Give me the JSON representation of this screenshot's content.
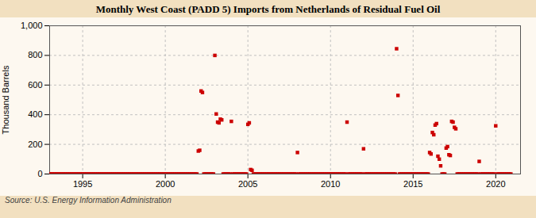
{
  "chart_data": {
    "type": "scatter",
    "title": "Monthly West Coast (PADD 5) Imports from Netherlands of Residual Fuel Oil",
    "ylabel": "Thousand Barrels",
    "source": "Source: U.S. Energy Information Administration",
    "color": "#cc0000",
    "marker": "square",
    "grid": true,
    "xlim": [
      1993.0,
      2021.5
    ],
    "ylim": [
      0,
      1000
    ],
    "xticks": [
      1995,
      2000,
      2005,
      2010,
      2015,
      2020
    ],
    "yticks": [
      0,
      200,
      400,
      600,
      800,
      {
        "value": 1000,
        "label": "1,000"
      }
    ],
    "x": [
      1993.0,
      1993.083,
      1993.167,
      1993.25,
      1993.333,
      1993.417,
      1993.5,
      1993.583,
      1993.667,
      1993.75,
      1993.833,
      1993.917,
      1994.0,
      1994.083,
      1994.167,
      1994.25,
      1994.333,
      1994.417,
      1994.5,
      1994.583,
      1994.667,
      1994.75,
      1994.833,
      1994.917,
      1995.0,
      1995.083,
      1995.167,
      1995.25,
      1995.333,
      1995.417,
      1995.5,
      1995.583,
      1995.667,
      1995.75,
      1995.833,
      1995.917,
      1996.0,
      1996.083,
      1996.167,
      1996.25,
      1996.333,
      1996.417,
      1996.5,
      1996.583,
      1996.667,
      1996.75,
      1996.833,
      1996.917,
      1997.0,
      1997.083,
      1997.167,
      1997.25,
      1997.333,
      1997.417,
      1997.5,
      1997.583,
      1997.667,
      1997.75,
      1997.833,
      1997.917,
      1998.0,
      1998.083,
      1998.167,
      1998.25,
      1998.333,
      1998.417,
      1998.5,
      1998.583,
      1998.667,
      1998.75,
      1998.833,
      1998.917,
      1999.0,
      1999.083,
      1999.167,
      1999.25,
      1999.333,
      1999.417,
      1999.5,
      1999.583,
      1999.667,
      1999.75,
      1999.833,
      1999.917,
      2000.0,
      2000.083,
      2000.167,
      2000.25,
      2000.333,
      2000.417,
      2000.5,
      2000.583,
      2000.667,
      2000.75,
      2000.833,
      2000.917,
      2001.0,
      2001.083,
      2001.167,
      2001.25,
      2001.333,
      2001.417,
      2001.5,
      2001.583,
      2001.667,
      2001.75,
      2001.833,
      2001.917,
      2002.0,
      2002.083,
      2002.167,
      2002.25,
      2002.333,
      2002.417,
      2002.5,
      2002.583,
      2002.667,
      2002.75,
      2002.833,
      2002.917,
      2003.0,
      2003.083,
      2003.167,
      2003.25,
      2003.333,
      2003.417,
      2003.5,
      2003.583,
      2003.667,
      2003.75,
      2003.833,
      2003.917,
      2004.0,
      2004.083,
      2004.167,
      2004.25,
      2004.333,
      2004.417,
      2004.5,
      2004.583,
      2004.667,
      2004.75,
      2004.833,
      2004.917,
      2005.0,
      2005.083,
      2005.167,
      2005.25,
      2005.333,
      2005.417,
      2005.5,
      2005.583,
      2005.667,
      2005.75,
      2005.833,
      2005.917,
      2006.0,
      2006.083,
      2006.167,
      2006.25,
      2006.333,
      2006.417,
      2006.5,
      2006.583,
      2006.667,
      2006.75,
      2006.833,
      2006.917,
      2007.0,
      2007.083,
      2007.167,
      2007.25,
      2007.333,
      2007.417,
      2007.5,
      2007.583,
      2007.667,
      2007.75,
      2007.833,
      2007.917,
      2008.0,
      2008.083,
      2008.167,
      2008.25,
      2008.333,
      2008.417,
      2008.5,
      2008.583,
      2008.667,
      2008.75,
      2008.833,
      2008.917,
      2009.0,
      2009.083,
      2009.167,
      2009.25,
      2009.333,
      2009.417,
      2009.5,
      2009.583,
      2009.667,
      2009.75,
      2009.833,
      2009.917,
      2010.0,
      2010.083,
      2010.167,
      2010.25,
      2010.333,
      2010.417,
      2010.5,
      2010.583,
      2010.667,
      2010.75,
      2010.833,
      2010.917,
      2011.0,
      2011.083,
      2011.167,
      2011.25,
      2011.333,
      2011.417,
      2011.5,
      2011.583,
      2011.667,
      2011.75,
      2011.833,
      2011.917,
      2012.0,
      2012.083,
      2012.167,
      2012.25,
      2012.333,
      2012.417,
      2012.5,
      2012.583,
      2012.667,
      2012.75,
      2012.833,
      2012.917,
      2013.0,
      2013.083,
      2013.167,
      2013.25,
      2013.333,
      2013.417,
      2013.5,
      2013.583,
      2013.667,
      2013.75,
      2013.833,
      2013.917,
      2014.0,
      2014.083,
      2014.167,
      2014.25,
      2014.333,
      2014.417,
      2014.5,
      2014.583,
      2014.667,
      2014.75,
      2014.833,
      2014.917,
      2015.0,
      2015.083,
      2015.167,
      2015.25,
      2015.333,
      2015.417,
      2015.5,
      2015.583,
      2015.667,
      2015.75,
      2015.833,
      2015.917,
      2016.0,
      2016.083,
      2016.167,
      2016.25,
      2016.333,
      2016.417,
      2016.5,
      2016.583,
      2016.667,
      2016.75,
      2016.833,
      2016.917,
      2017.0,
      2017.083,
      2017.167,
      2017.25,
      2017.333,
      2017.417,
      2017.5,
      2017.583,
      2017.667,
      2017.75,
      2017.833,
      2017.917,
      2018.0,
      2018.083,
      2018.167,
      2018.25,
      2018.333,
      2018.417,
      2018.5,
      2018.583,
      2018.667,
      2018.75,
      2018.833,
      2018.917,
      2019.0,
      2019.083,
      2019.167,
      2019.25,
      2019.333,
      2019.417,
      2019.5,
      2019.583,
      2019.667,
      2019.75,
      2019.833,
      2019.917,
      2020.0,
      2020.083,
      2020.167,
      2020.25,
      2020.333,
      2020.417,
      2020.5,
      2020.583,
      2020.667,
      2020.75,
      2020.833,
      2020.917
    ],
    "values": [
      0,
      0,
      0,
      0,
      0,
      0,
      0,
      0,
      0,
      0,
      0,
      0,
      0,
      0,
      0,
      0,
      0,
      0,
      0,
      0,
      0,
      0,
      0,
      0,
      0,
      0,
      0,
      0,
      0,
      0,
      0,
      0,
      0,
      0,
      0,
      0,
      0,
      0,
      0,
      0,
      0,
      0,
      0,
      0,
      0,
      0,
      0,
      0,
      0,
      0,
      0,
      0,
      0,
      0,
      0,
      0,
      0,
      0,
      0,
      0,
      0,
      0,
      0,
      0,
      0,
      0,
      0,
      0,
      0,
      0,
      0,
      0,
      0,
      0,
      0,
      0,
      0,
      0,
      0,
      0,
      0,
      0,
      0,
      0,
      0,
      0,
      0,
      0,
      0,
      0,
      0,
      0,
      0,
      0,
      0,
      0,
      0,
      0,
      0,
      0,
      0,
      0,
      0,
      0,
      0,
      0,
      0,
      0,
      155,
      160,
      560,
      550,
      0,
      0,
      0,
      0,
      0,
      0,
      0,
      0,
      800,
      405,
      350,
      345,
      370,
      365,
      0,
      0,
      0,
      0,
      0,
      0,
      355,
      0,
      0,
      0,
      0,
      0,
      0,
      0,
      0,
      0,
      0,
      0,
      335,
      345,
      30,
      25,
      0,
      0,
      0,
      0,
      0,
      0,
      0,
      0,
      0,
      0,
      0,
      0,
      0,
      0,
      0,
      0,
      0,
      0,
      0,
      0,
      0,
      0,
      0,
      0,
      0,
      0,
      0,
      0,
      0,
      0,
      0,
      0,
      145,
      0,
      0,
      0,
      0,
      0,
      0,
      0,
      0,
      0,
      0,
      0,
      0,
      0,
      0,
      0,
      0,
      0,
      0,
      0,
      0,
      0,
      0,
      0,
      0,
      0,
      0,
      0,
      0,
      0,
      0,
      0,
      0,
      0,
      0,
      0,
      350,
      0,
      0,
      0,
      0,
      0,
      0,
      0,
      0,
      0,
      0,
      0,
      170,
      0,
      0,
      0,
      0,
      0,
      0,
      0,
      0,
      0,
      0,
      0,
      0,
      0,
      0,
      0,
      0,
      0,
      0,
      0,
      0,
      0,
      0,
      0,
      845,
      530,
      0,
      0,
      0,
      0,
      0,
      0,
      0,
      0,
      0,
      0,
      0,
      0,
      0,
      0,
      0,
      0,
      0,
      0,
      0,
      0,
      0,
      0,
      145,
      135,
      280,
      265,
      330,
      340,
      120,
      100,
      55,
      0,
      0,
      0,
      175,
      185,
      130,
      125,
      355,
      350,
      315,
      305,
      0,
      0,
      0,
      0,
      0,
      0,
      0,
      0,
      0,
      0,
      0,
      0,
      0,
      0,
      0,
      0,
      85,
      0,
      0,
      0,
      0,
      0,
      0,
      0,
      0,
      0,
      0,
      0,
      325,
      0,
      0,
      0,
      0,
      0,
      0,
      0,
      0,
      0,
      0,
      0
    ]
  }
}
